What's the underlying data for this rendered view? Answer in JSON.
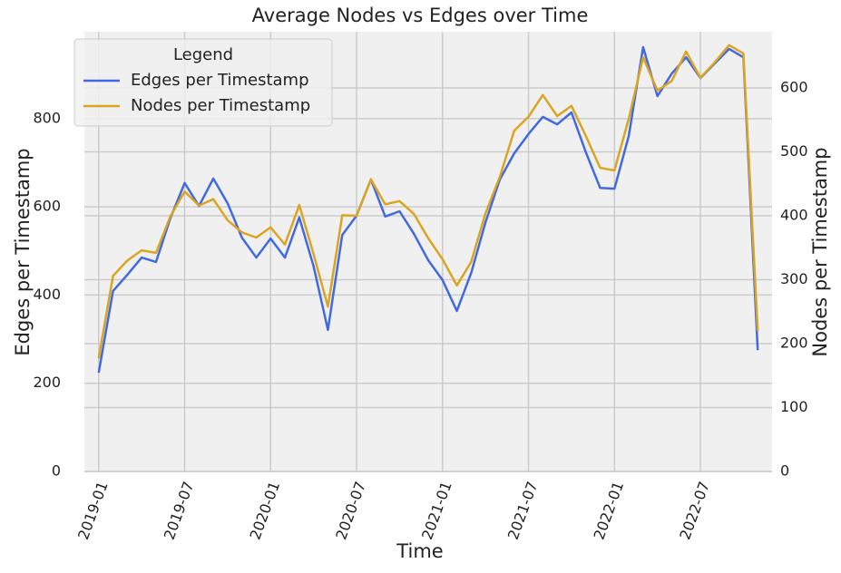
{
  "chart_data": {
    "type": "line",
    "title": "Average Nodes vs Edges over Time",
    "xlabel": "Time",
    "ylabel": "Edges per Timestamp",
    "y2label": "Nodes per Timestamp",
    "legend_title": "Legend",
    "legend": "upper left",
    "grid": true,
    "x": [
      "2019-01",
      "2019-02",
      "2019-03",
      "2019-04",
      "2019-05",
      "2019-06",
      "2019-07",
      "2019-08",
      "2019-09",
      "2019-10",
      "2019-11",
      "2019-12",
      "2020-01",
      "2020-02",
      "2020-03",
      "2020-04",
      "2020-05",
      "2020-06",
      "2020-07",
      "2020-08",
      "2020-09",
      "2020-10",
      "2020-11",
      "2020-12",
      "2021-01",
      "2021-02",
      "2021-03",
      "2021-04",
      "2021-05",
      "2021-06",
      "2021-07",
      "2021-08",
      "2021-09",
      "2021-10",
      "2021-11",
      "2021-12",
      "2022-01",
      "2022-02",
      "2022-03",
      "2022-04",
      "2022-05",
      "2022-06",
      "2022-07",
      "2022-08",
      "2022-09",
      "2022-10",
      "2022-11"
    ],
    "xlim": [
      "2018-12",
      "2022-12"
    ],
    "xticks": [
      "2019-01",
      "2019-07",
      "2020-01",
      "2020-07",
      "2021-01",
      "2021-07",
      "2022-01",
      "2022-07"
    ],
    "ylim": [
      0,
      997
    ],
    "yticks": [
      0,
      200,
      400,
      600,
      800
    ],
    "y2lim": [
      0,
      688
    ],
    "y2ticks": [
      0,
      100,
      200,
      300,
      400,
      500,
      600
    ],
    "series": [
      {
        "name": "Edges per Timestamp",
        "color": "#4169e1",
        "axis": "y",
        "values": [
          224,
          409,
          446,
          485,
          475,
          574,
          654,
          602,
          664,
          608,
          530,
          485,
          528,
          485,
          576,
          465,
          321,
          536,
          580,
          662,
          578,
          590,
          539,
          479,
          434,
          364,
          450,
          565,
          662,
          721,
          765,
          804,
          787,
          814,
          724,
          643,
          641,
          761,
          962,
          851,
          902,
          939,
          892,
          925,
          958,
          939,
          275
        ]
      },
      {
        "name": "Nodes per Timestamp",
        "color": "#daa520",
        "axis": "y2",
        "values": [
          177,
          306,
          330,
          346,
          342,
          399,
          438,
          416,
          426,
          393,
          374,
          366,
          382,
          355,
          417,
          340,
          258,
          401,
          400,
          457,
          418,
          423,
          403,
          365,
          332,
          291,
          328,
          404,
          461,
          533,
          555,
          589,
          556,
          572,
          525,
          475,
          471,
          552,
          648,
          596,
          611,
          657,
          616,
          640,
          667,
          654,
          220
        ]
      }
    ]
  }
}
